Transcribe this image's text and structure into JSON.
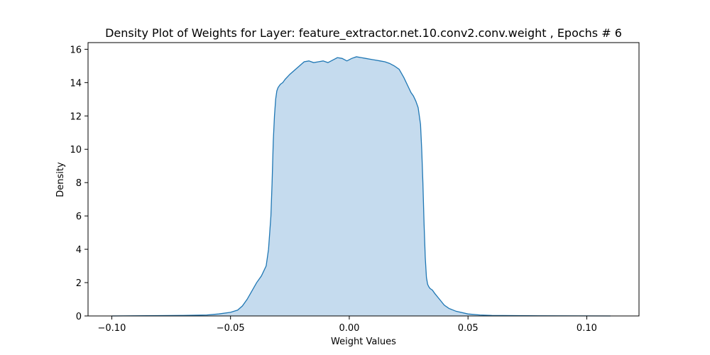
{
  "chart_data": {
    "type": "area",
    "title": "Density Plot of Weights for Layer: feature_extractor.net.10.conv2.conv.weight , Epochs # 6",
    "xlabel": "Weight Values",
    "ylabel": "Density",
    "xlim": [
      -0.11,
      0.122
    ],
    "ylim": [
      0,
      16.4
    ],
    "xticks": [
      -0.1,
      -0.05,
      0.0,
      0.05,
      0.1
    ],
    "xtick_labels": [
      "−0.10",
      "−0.05",
      "0.00",
      "0.05",
      "0.10"
    ],
    "yticks": [
      0,
      2,
      4,
      6,
      8,
      10,
      12,
      14,
      16
    ],
    "ytick_labels": [
      "0",
      "2",
      "4",
      "6",
      "8",
      "10",
      "12",
      "14",
      "16"
    ],
    "grid": false,
    "legend": "none",
    "colors": {
      "line": "#1f77b4",
      "fill": "#c5dbee"
    },
    "series": [
      {
        "x": [
          -0.1,
          -0.08,
          -0.07,
          -0.06,
          -0.055,
          -0.05,
          -0.047,
          -0.045,
          -0.043,
          -0.041,
          -0.039,
          -0.037,
          -0.035,
          -0.034,
          -0.033,
          -0.0325,
          -0.032,
          -0.0315,
          -0.031,
          -0.0305,
          -0.03,
          -0.0295,
          -0.029,
          -0.0285,
          -0.028,
          -0.027,
          -0.025,
          -0.023,
          -0.021,
          -0.019,
          -0.017,
          -0.015,
          -0.013,
          -0.011,
          -0.009,
          -0.007,
          -0.005,
          -0.003,
          -0.001,
          0.001,
          0.003,
          0.005,
          0.007,
          0.009,
          0.011,
          0.013,
          0.015,
          0.017,
          0.019,
          0.021,
          0.023,
          0.025,
          0.026,
          0.027,
          0.028,
          0.029,
          0.03,
          0.0305,
          0.031,
          0.0315,
          0.032,
          0.0325,
          0.033,
          0.0335,
          0.034,
          0.035,
          0.036,
          0.038,
          0.04,
          0.042,
          0.045,
          0.05,
          0.055,
          0.06,
          0.07,
          0.08,
          0.11
        ],
        "y": [
          0.0,
          0.02,
          0.03,
          0.06,
          0.12,
          0.22,
          0.35,
          0.6,
          1.0,
          1.5,
          2.0,
          2.4,
          3.0,
          4.0,
          6.0,
          8.0,
          10.5,
          12.0,
          13.0,
          13.5,
          13.7,
          13.8,
          13.9,
          13.95,
          14.0,
          14.2,
          14.5,
          14.75,
          15.0,
          15.25,
          15.3,
          15.2,
          15.25,
          15.3,
          15.2,
          15.35,
          15.5,
          15.45,
          15.3,
          15.45,
          15.55,
          15.5,
          15.45,
          15.4,
          15.35,
          15.3,
          15.25,
          15.15,
          15.0,
          14.8,
          14.3,
          13.7,
          13.4,
          13.2,
          12.9,
          12.5,
          11.5,
          10.0,
          8.0,
          5.5,
          3.5,
          2.3,
          1.9,
          1.75,
          1.65,
          1.55,
          1.35,
          1.0,
          0.65,
          0.45,
          0.28,
          0.12,
          0.06,
          0.03,
          0.02,
          0.01,
          0.0
        ]
      }
    ]
  }
}
